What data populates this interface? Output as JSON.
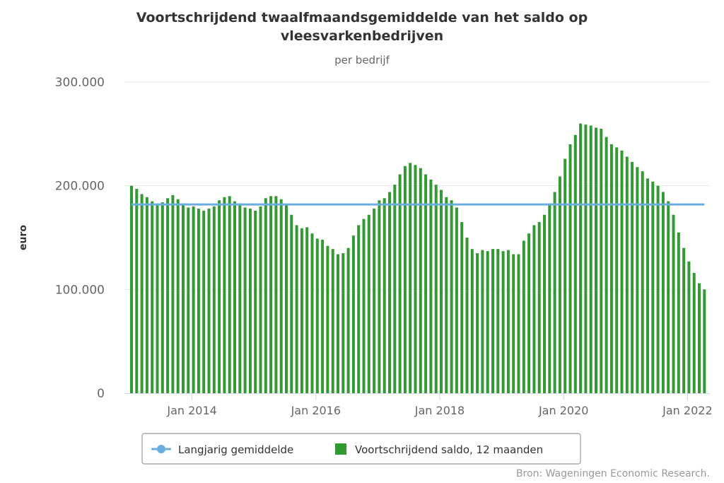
{
  "chart_data": {
    "type": "bar",
    "title_line1": "Voortschrijdend twaalfmaandsgemiddelde van het saldo op",
    "title_line2": "vleesvarkenbedrijven",
    "subtitle": "per bedrijf",
    "ylabel": "euro",
    "xlabel": "",
    "ylim": [
      0,
      300000
    ],
    "yticks": [
      {
        "value": 0,
        "label": "0"
      },
      {
        "value": 100000,
        "label": "100.000"
      },
      {
        "value": 200000,
        "label": "200.000"
      },
      {
        "value": 300000,
        "label": "300.000"
      }
    ],
    "xticks": [
      {
        "date": "2014-01",
        "label": "Jan 2014"
      },
      {
        "date": "2016-01",
        "label": "Jan 2016"
      },
      {
        "date": "2018-01",
        "label": "Jan 2018"
      },
      {
        "date": "2020-01",
        "label": "Jan 2020"
      },
      {
        "date": "2022-01",
        "label": "Jan 2022"
      }
    ],
    "x_start": "2013-01",
    "grid": true,
    "legend_position": "bottom-center",
    "series": [
      {
        "name": "Langjarig gemiddelde",
        "type": "line",
        "color": "#6aaee0",
        "value": 182000
      },
      {
        "name": "Voortschrijdend saldo, 12 maanden",
        "type": "bar",
        "color": "#339933",
        "values": [
          200000,
          197000,
          192000,
          189000,
          185000,
          183000,
          184000,
          188000,
          191000,
          187000,
          183000,
          179000,
          180000,
          178000,
          176000,
          178000,
          180000,
          186000,
          189000,
          190000,
          185000,
          183000,
          179000,
          178000,
          176000,
          180000,
          188000,
          190000,
          190000,
          187000,
          181000,
          172000,
          162000,
          159000,
          160000,
          154000,
          149000,
          148000,
          142000,
          139000,
          134000,
          135000,
          140000,
          152000,
          162000,
          168000,
          172000,
          178000,
          186000,
          188000,
          194000,
          201000,
          211000,
          219000,
          222000,
          220000,
          217000,
          211000,
          206000,
          201000,
          196000,
          189000,
          186000,
          179000,
          165000,
          150000,
          139000,
          135000,
          138000,
          137000,
          139000,
          139000,
          137000,
          138000,
          134000,
          134000,
          147000,
          154000,
          162000,
          165000,
          172000,
          183000,
          194000,
          209000,
          226000,
          240000,
          249000,
          260000,
          259000,
          258000,
          256000,
          255000,
          247000,
          240000,
          237000,
          234000,
          228000,
          223000,
          218000,
          214000,
          207000,
          204000,
          200000,
          194000,
          185000,
          172000,
          155000,
          140000,
          127000,
          116000,
          106000,
          100000
        ]
      }
    ]
  },
  "legend": {
    "line_label": "Langjarig gemiddelde",
    "bar_label": "Voortschrijdend saldo, 12 maanden"
  },
  "credits": "Bron: Wageningen Economic Research."
}
